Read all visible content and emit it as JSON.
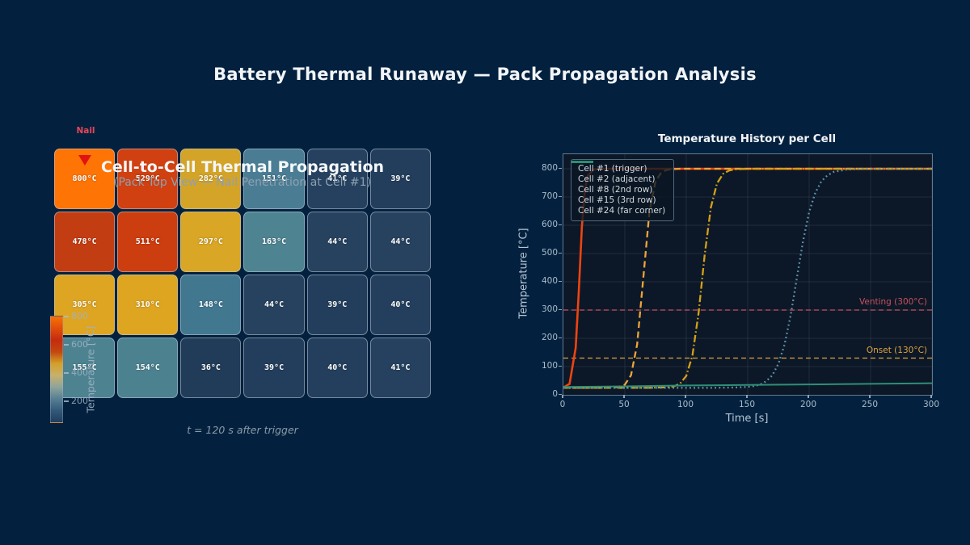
{
  "figure": {
    "title": "Battery Thermal Runaway — Pack Propagation Analysis",
    "background": "#03213F"
  },
  "heatmap": {
    "title": "Cell-to-Cell Thermal Propagation",
    "subtitle": "(Pack Top View — Nail Penetration at Cell #1)",
    "nail_label": "Nail",
    "nail_color": "#E31212",
    "caption": "t = 120 s after trigger",
    "rows": 4,
    "cols": 6,
    "cells": [
      [
        {
          "label": "800°C",
          "value": 800,
          "color": "#FE7405"
        },
        {
          "label": "529°C",
          "value": 529,
          "color": "#D04010"
        },
        {
          "label": "282°C",
          "value": 282,
          "color": "#D4A428"
        },
        {
          "label": "151°C",
          "value": 151,
          "color": "#4A7D94"
        },
        {
          "label": "41°C",
          "value": 41,
          "color": "#25415F"
        },
        {
          "label": "39°C",
          "value": 39,
          "color": "#233E5C"
        }
      ],
      [
        {
          "label": "478°C",
          "value": 478,
          "color": "#C33D13"
        },
        {
          "label": "511°C",
          "value": 511,
          "color": "#CC3D0F"
        },
        {
          "label": "297°C",
          "value": 297,
          "color": "#D9A625"
        },
        {
          "label": "163°C",
          "value": 163,
          "color": "#4E8492"
        },
        {
          "label": "44°C",
          "value": 44,
          "color": "#27425F"
        },
        {
          "label": "44°C",
          "value": 44,
          "color": "#27425F"
        }
      ],
      [
        {
          "label": "305°C",
          "value": 305,
          "color": "#DDA522"
        },
        {
          "label": "310°C",
          "value": 310,
          "color": "#DEA521"
        },
        {
          "label": "148°C",
          "value": 148,
          "color": "#427790"
        },
        {
          "label": "44°C",
          "value": 44,
          "color": "#27425F"
        },
        {
          "label": "39°C",
          "value": 39,
          "color": "#233E5C"
        },
        {
          "label": "40°C",
          "value": 40,
          "color": "#243F5D"
        }
      ],
      [
        {
          "label": "155°C",
          "value": 155,
          "color": "#4D8390"
        },
        {
          "label": "154°C",
          "value": 154,
          "color": "#4C8290"
        },
        {
          "label": "36°C",
          "value": 36,
          "color": "#213C59"
        },
        {
          "label": "39°C",
          "value": 39,
          "color": "#233E5C"
        },
        {
          "label": "40°C",
          "value": 40,
          "color": "#243F5D"
        },
        {
          "label": "41°C",
          "value": 41,
          "color": "#25415F"
        }
      ]
    ],
    "colorbar": {
      "label": "Temperature [°C]",
      "tick_labels": [
        "800",
        "600",
        "400",
        "200"
      ],
      "gradient_top_to_bottom": [
        "#F97005",
        "#E04E0C",
        "#C52B10",
        "#C3470F",
        "#D3A029",
        "#C9B06A",
        "#8FA49C",
        "#567F93",
        "#33597A",
        "#1F3D5F"
      ]
    }
  },
  "chart_data": {
    "type": "line",
    "title": "Temperature History per Cell",
    "xlabel": "Time [s]",
    "ylabel": "Temperature [°C]",
    "xlim": [
      0,
      300
    ],
    "ylim": [
      0,
      850
    ],
    "xticks": [
      0,
      50,
      100,
      150,
      200,
      250,
      300
    ],
    "yticks": [
      0,
      100,
      200,
      300,
      400,
      500,
      600,
      700,
      800
    ],
    "grid": true,
    "legend_position": "upper left",
    "plot_bg": "#0C1828",
    "grid_color": "rgba(150,170,190,0.14)",
    "series": [
      {
        "name": "Cell #1 (trigger)",
        "color": "#EE4410",
        "style": "solid",
        "width": 2.6,
        "t": [
          0,
          5,
          10,
          12.5,
          15,
          17.5,
          20,
          25,
          30,
          40,
          60,
          100,
          150,
          200,
          250,
          300
        ],
        "T": [
          26,
          39,
          166,
          364,
          592,
          726,
          777,
          798,
          800,
          800,
          800,
          800,
          800,
          800,
          800,
          800
        ]
      },
      {
        "name": "Cell #2 (adjacent)",
        "color": "#EDA439",
        "style": "dashed",
        "width": 2.3,
        "t": [
          0,
          20,
          35,
          40,
          45,
          50,
          55,
          60,
          65,
          70,
          75,
          80,
          85,
          90,
          95,
          110,
          150,
          200,
          250,
          300
        ],
        "T": [
          25,
          25,
          25,
          26,
          28,
          36,
          69,
          178,
          413,
          647,
          756,
          789,
          797,
          799,
          800,
          800,
          800,
          800,
          800,
          800
        ]
      },
      {
        "name": "Cell #8 (2nd row)",
        "color": "#D4A017",
        "style": "dashdot",
        "width": 2.3,
        "t": [
          0,
          40,
          70,
          80,
          85,
          90,
          95,
          100,
          105,
          110,
          115,
          120,
          125,
          130,
          135,
          140,
          145,
          150,
          200,
          250,
          300
        ],
        "T": [
          25,
          25,
          25,
          26,
          27,
          30,
          40,
          67,
          139,
          289,
          496,
          663,
          748,
          782,
          794,
          798,
          799,
          800,
          800,
          800,
          800
        ]
      },
      {
        "name": "Cell #15 (3rd row)",
        "color": "#5E93AC",
        "style": "dotted",
        "width": 2.3,
        "t": [
          0,
          60,
          120,
          140,
          150,
          155,
          160,
          165,
          170,
          175,
          180,
          185,
          190,
          195,
          200,
          205,
          210,
          215,
          220,
          230,
          240,
          250,
          300
        ],
        "T": [
          25,
          25,
          25,
          26,
          28,
          31,
          36,
          48,
          69,
          110,
          178,
          282,
          413,
          543,
          647,
          715,
          756,
          777,
          789,
          797,
          799,
          800,
          800
        ]
      },
      {
        "name": "Cell #24 (far corner)",
        "color": "#2E8F76",
        "style": "solid",
        "width": 2.0,
        "t": [
          0,
          50,
          100,
          150,
          200,
          250,
          300
        ],
        "T": [
          28,
          30,
          33,
          35,
          37,
          39,
          41
        ]
      }
    ],
    "reference_lines": [
      {
        "label": "Venting (300°C)",
        "y": 300,
        "color": "#C8505C"
      },
      {
        "label": "Onset (130°C)",
        "y": 130,
        "color": "#DEA43C"
      }
    ]
  }
}
